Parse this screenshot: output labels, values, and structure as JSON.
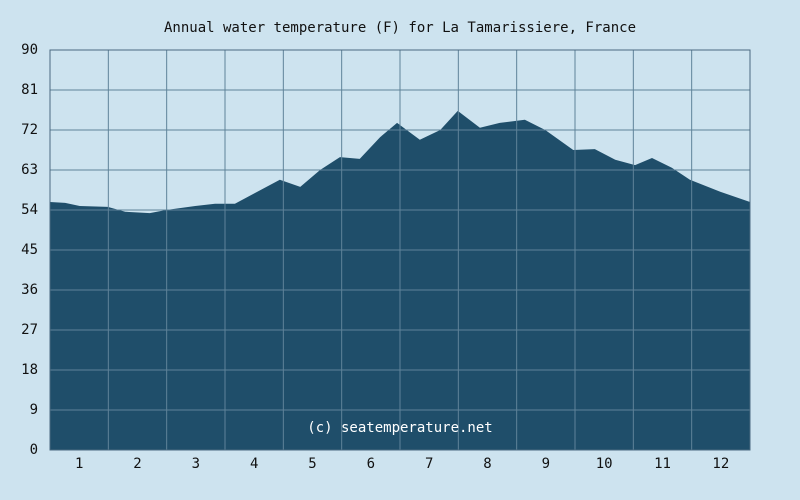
{
  "chart_data": {
    "type": "area",
    "title": "Annual water temperature (F) for La Tamarissiere, France",
    "annotation": "(c) seatemperature.net",
    "x": [
      0.5,
      0.76,
      1.01,
      1.49,
      1.79,
      2.21,
      2.49,
      2.99,
      3.33,
      3.67,
      4.01,
      4.44,
      4.79,
      5.13,
      5.47,
      5.81,
      6.16,
      6.45,
      6.84,
      7.19,
      7.49,
      7.87,
      8.21,
      8.64,
      8.99,
      9.47,
      9.84,
      10.19,
      10.53,
      10.82,
      11.16,
      11.47,
      11.99,
      12.5
    ],
    "values": [
      55.8,
      55.6,
      54.9,
      54.7,
      53.6,
      53.3,
      54,
      54.9,
      55.4,
      55.4,
      57.8,
      60.8,
      59.2,
      63,
      65.9,
      65.5,
      70.4,
      73.6,
      69.8,
      72,
      76.3,
      72.5,
      73.6,
      74.3,
      72,
      67.5,
      67.7,
      65.3,
      64.1,
      65.7,
      63.5,
      60.8,
      58.1,
      55.8
    ],
    "color": "#1f4e6a",
    "xlim": [
      0.5,
      12.5
    ],
    "xticks": [
      1,
      2,
      3,
      4,
      5,
      6,
      7,
      8,
      9,
      10,
      11,
      12
    ],
    "ylim": [
      0,
      90
    ],
    "yticks": [
      0,
      9,
      18,
      27,
      36,
      45,
      54,
      63,
      72,
      81,
      90
    ],
    "grid": true
  }
}
